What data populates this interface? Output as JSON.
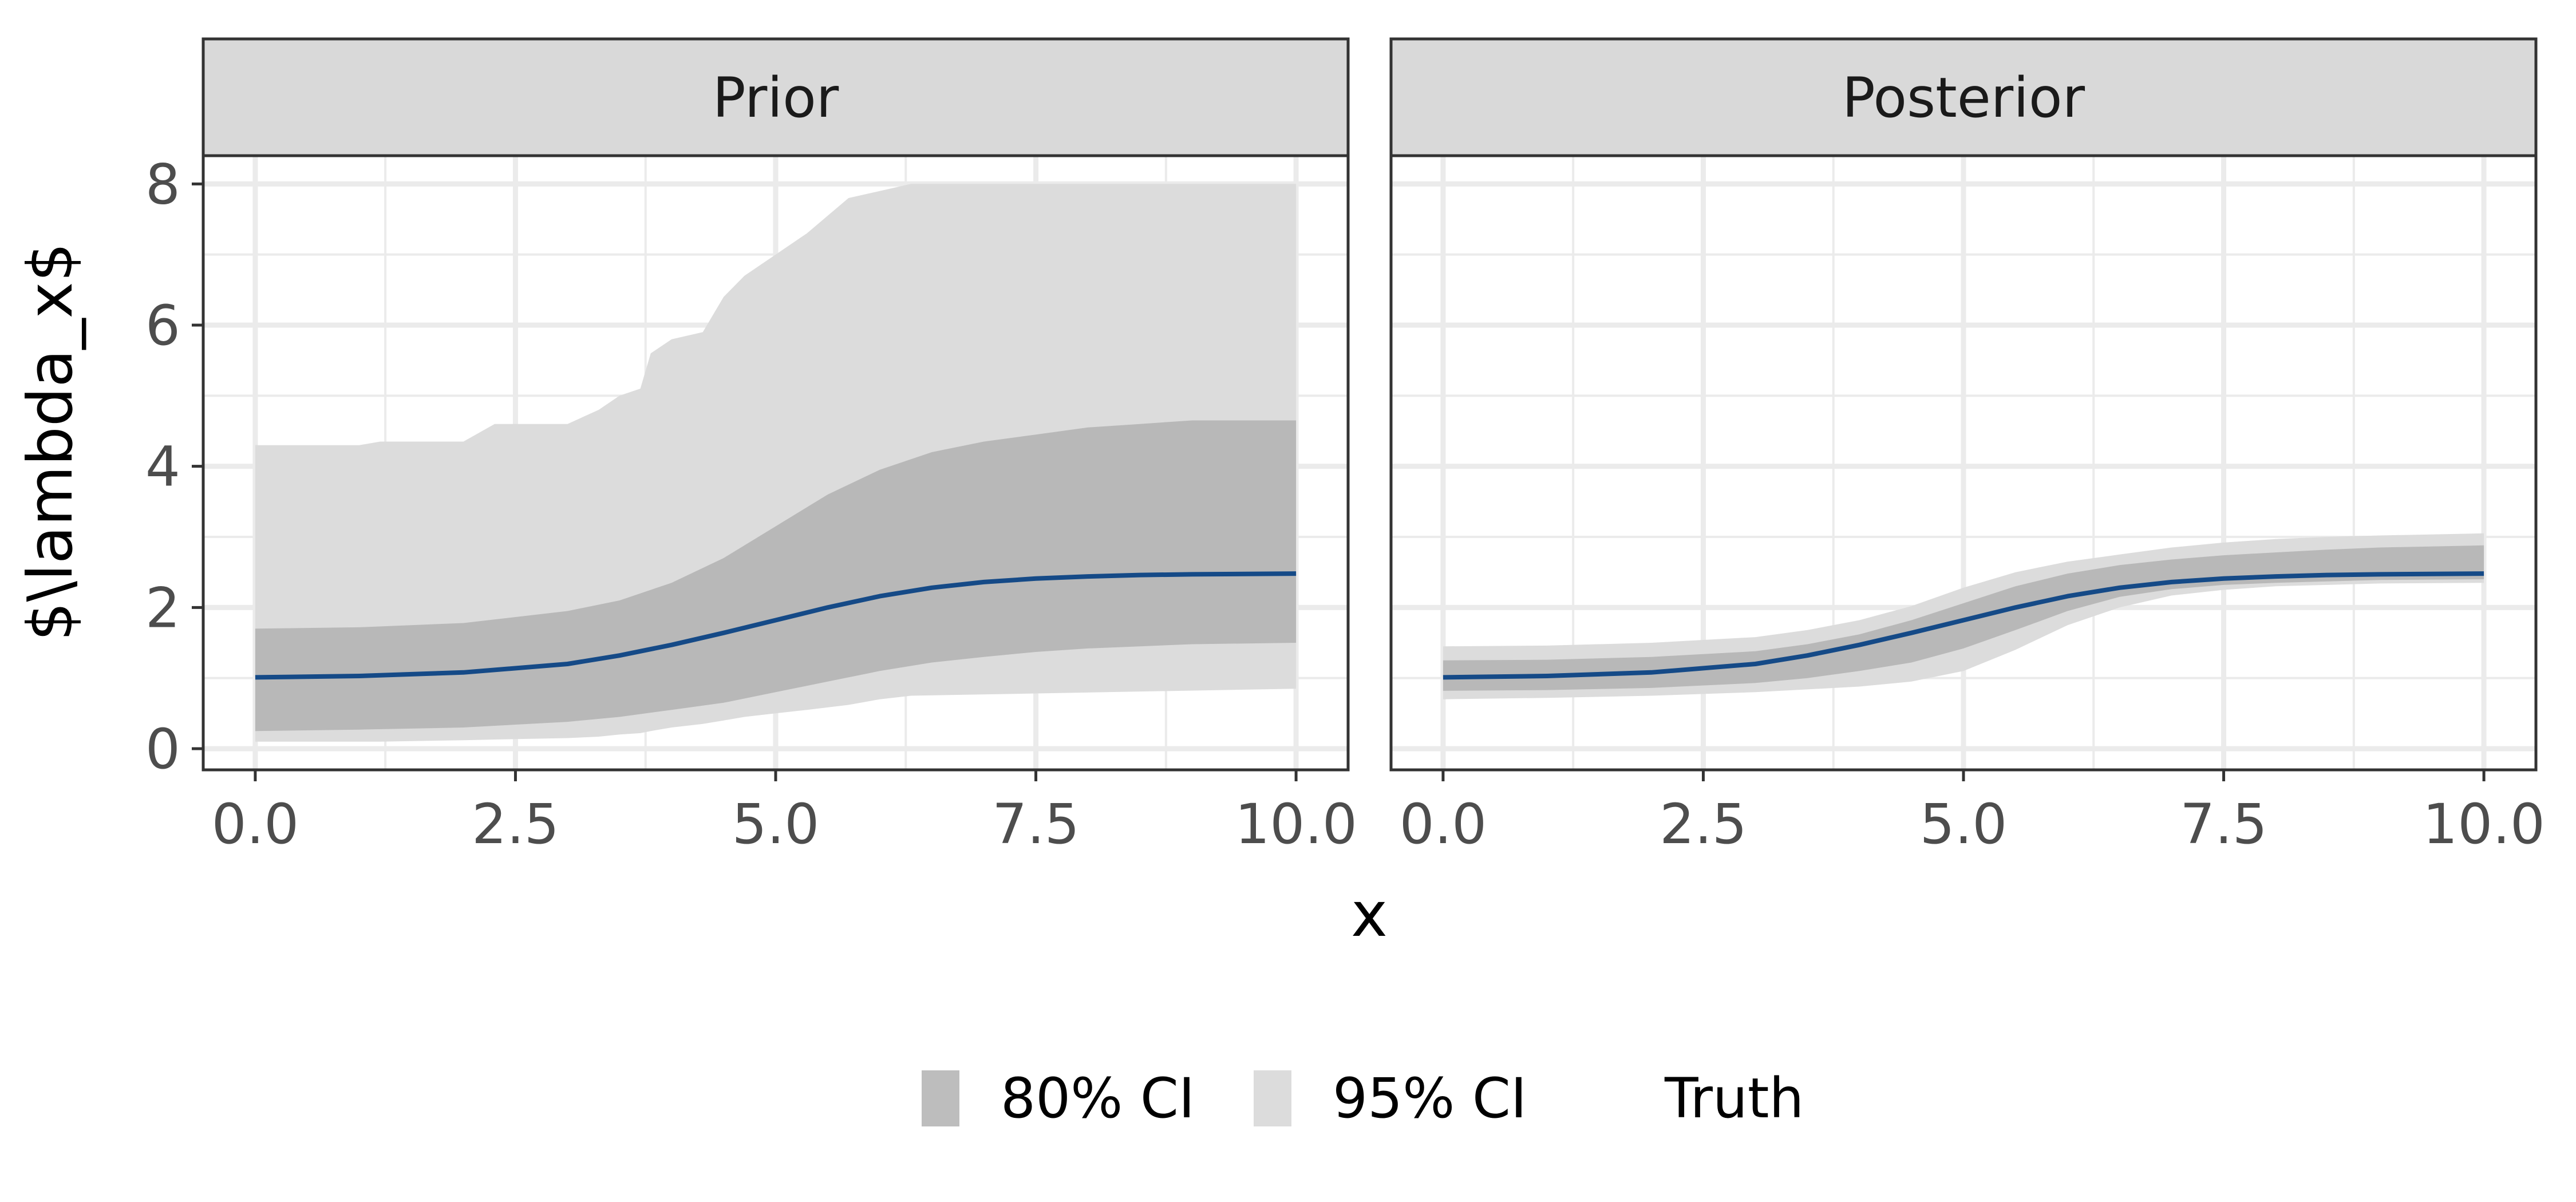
{
  "chart_data": {
    "type": "area",
    "xlabel": "x",
    "ylabel": "$\\lambda_x$",
    "xlim": [
      -0.5,
      10.5
    ],
    "ylim": [
      -0.3,
      8.4
    ],
    "x_ticks": [
      "0.0",
      "2.5",
      "5.0",
      "7.5",
      "10.0"
    ],
    "y_ticks": [
      "0",
      "2",
      "4",
      "6",
      "8"
    ],
    "grid": true,
    "legend": {
      "position": "bottom",
      "items": [
        {
          "label": "80% CI",
          "type": "fill",
          "color": "#bdbdbd"
        },
        {
          "label": "95% CI",
          "type": "fill",
          "color": "#dcdcdc"
        },
        {
          "label": "Truth",
          "type": "line",
          "color": "#ffffff"
        }
      ]
    },
    "colors": {
      "ci95": "#dcdcdc",
      "ci80": "#b8b8b8",
      "truth": "#154a87",
      "strip": "#d9d9d9",
      "grid": "#ebebeb"
    },
    "panels": [
      {
        "strip_label": "Prior",
        "ci95": {
          "x": [
            0,
            1,
            1.2,
            2,
            2.3,
            3,
            3.3,
            3.5,
            3.7,
            3.8,
            4,
            4.3,
            4.5,
            4.7,
            5,
            5.3,
            5.7,
            6,
            6.3,
            10
          ],
          "upper": [
            4.3,
            4.3,
            4.35,
            4.35,
            4.6,
            4.6,
            4.8,
            5.0,
            5.1,
            5.6,
            5.8,
            5.9,
            6.4,
            6.7,
            7.0,
            7.3,
            7.8,
            7.9,
            8.0,
            8.0
          ],
          "lower": [
            0.1,
            0.1,
            0.1,
            0.12,
            0.13,
            0.15,
            0.17,
            0.2,
            0.22,
            0.25,
            0.3,
            0.35,
            0.4,
            0.45,
            0.5,
            0.55,
            0.62,
            0.7,
            0.75,
            0.85
          ]
        },
        "ci80": {
          "x": [
            0,
            1,
            2,
            3,
            3.5,
            4,
            4.5,
            5,
            5.5,
            6,
            6.5,
            7,
            7.5,
            8,
            8.5,
            9,
            10
          ],
          "upper": [
            1.7,
            1.72,
            1.78,
            1.95,
            2.1,
            2.35,
            2.7,
            3.15,
            3.6,
            3.95,
            4.2,
            4.35,
            4.45,
            4.55,
            4.6,
            4.65,
            4.65
          ],
          "lower": [
            0.25,
            0.27,
            0.3,
            0.38,
            0.45,
            0.55,
            0.65,
            0.8,
            0.95,
            1.1,
            1.22,
            1.3,
            1.37,
            1.42,
            1.45,
            1.48,
            1.5
          ]
        },
        "truth": {
          "x": [
            0,
            1,
            2,
            3,
            3.5,
            4,
            4.5,
            5,
            5.5,
            6,
            6.5,
            7,
            7.5,
            8,
            8.5,
            9,
            10
          ],
          "y": [
            1.01,
            1.03,
            1.08,
            1.2,
            1.32,
            1.47,
            1.64,
            1.82,
            2.0,
            2.16,
            2.28,
            2.36,
            2.41,
            2.44,
            2.46,
            2.47,
            2.48
          ]
        }
      },
      {
        "strip_label": "Posterior",
        "ci95": {
          "x": [
            0,
            1,
            2,
            3,
            3.5,
            4,
            4.5,
            5,
            5.5,
            6,
            6.5,
            7,
            7.5,
            8,
            8.5,
            9,
            10
          ],
          "upper": [
            1.45,
            1.46,
            1.5,
            1.58,
            1.68,
            1.82,
            2.02,
            2.28,
            2.5,
            2.65,
            2.75,
            2.85,
            2.92,
            2.97,
            3.0,
            3.02,
            3.05
          ],
          "lower": [
            0.7,
            0.72,
            0.75,
            0.8,
            0.84,
            0.88,
            0.95,
            1.1,
            1.4,
            1.75,
            2.0,
            2.17,
            2.25,
            2.3,
            2.32,
            2.34,
            2.35
          ]
        },
        "ci80": {
          "x": [
            0,
            1,
            2,
            3,
            3.5,
            4,
            4.5,
            5,
            5.5,
            6,
            6.5,
            7,
            7.5,
            8,
            8.5,
            9,
            10
          ],
          "upper": [
            1.25,
            1.26,
            1.3,
            1.38,
            1.48,
            1.62,
            1.82,
            2.06,
            2.3,
            2.48,
            2.6,
            2.68,
            2.74,
            2.78,
            2.82,
            2.85,
            2.88
          ],
          "lower": [
            0.82,
            0.83,
            0.86,
            0.93,
            1.0,
            1.1,
            1.22,
            1.42,
            1.68,
            1.95,
            2.15,
            2.26,
            2.32,
            2.35,
            2.37,
            2.39,
            2.4
          ]
        },
        "truth": {
          "x": [
            0,
            1,
            2,
            3,
            3.5,
            4,
            4.5,
            5,
            5.5,
            6,
            6.5,
            7,
            7.5,
            8,
            8.5,
            9,
            10
          ],
          "y": [
            1.01,
            1.03,
            1.08,
            1.2,
            1.32,
            1.47,
            1.64,
            1.82,
            2.0,
            2.16,
            2.28,
            2.36,
            2.41,
            2.44,
            2.46,
            2.47,
            2.48
          ]
        }
      }
    ]
  }
}
